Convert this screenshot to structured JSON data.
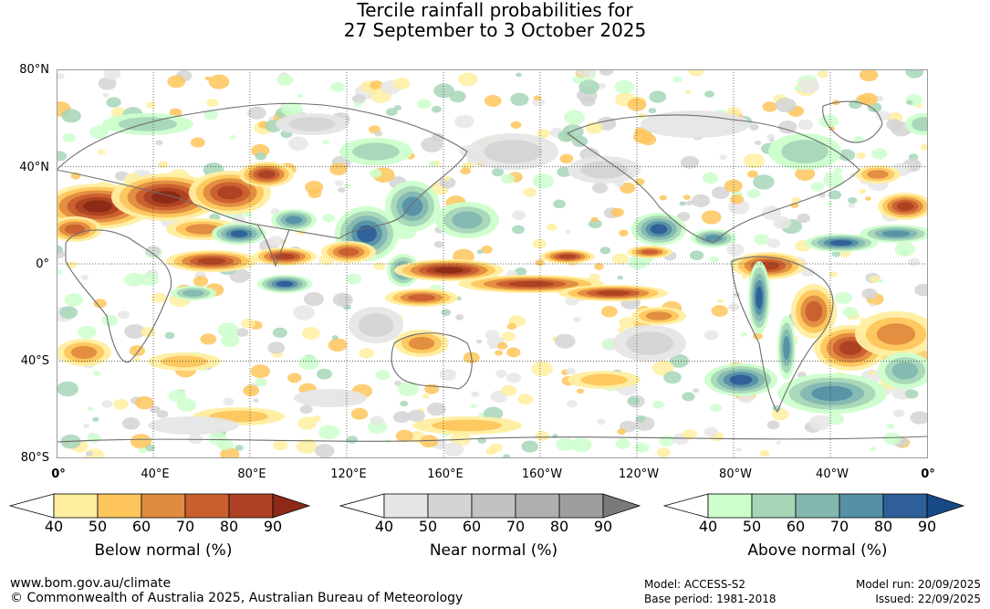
{
  "title": {
    "line1": "Tercile rainfall probabilities for",
    "line2": "27 September to 3 October 2025"
  },
  "map": {
    "lat_labels": [
      "80°N",
      "40°N",
      "0°",
      "40°S",
      "80°S"
    ],
    "lon_labels": [
      "0°",
      "40°E",
      "80°E",
      "120°E",
      "160°E",
      "160°W",
      "120°W",
      "80°W",
      "40°W",
      "0°"
    ],
    "colors": {
      "ocean_base": "#ffffff",
      "grid": "#333333",
      "coast": "#6e6e6e"
    }
  },
  "legends": [
    {
      "title": "Below normal (%)",
      "ticks": [
        "40",
        "50",
        "60",
        "70",
        "80",
        "90"
      ],
      "colors": [
        "#ffffff",
        "#ffeea0",
        "#fec65c",
        "#e08c40",
        "#c95f2f",
        "#ac4123",
        "#8c2a17"
      ]
    },
    {
      "title": "Near normal (%)",
      "ticks": [
        "40",
        "50",
        "60",
        "70",
        "80",
        "90"
      ],
      "colors": [
        "#ffffff",
        "#e6e6e6",
        "#d4d4d4",
        "#c2c2c2",
        "#b0b0b0",
        "#9e9e9e",
        "#7a7a7a"
      ]
    },
    {
      "title": "Above normal (%)",
      "ticks": [
        "40",
        "50",
        "60",
        "70",
        "80",
        "90"
      ],
      "colors": [
        "#ffffff",
        "#ccffcc",
        "#a6d6b8",
        "#82b8b0",
        "#5690a6",
        "#2e5f98",
        "#174a86"
      ]
    }
  ],
  "footer": {
    "website": "www.bom.gov.au/climate",
    "copyright": "© Commonwealth of Australia 2025, Australian Bureau of Meteorology",
    "model": "Model: ACCESS-S2",
    "base_period": "Base period: 1981-2018",
    "model_run": "Model run: 20/09/2025",
    "issued": "Issued: 22/09/2025"
  }
}
